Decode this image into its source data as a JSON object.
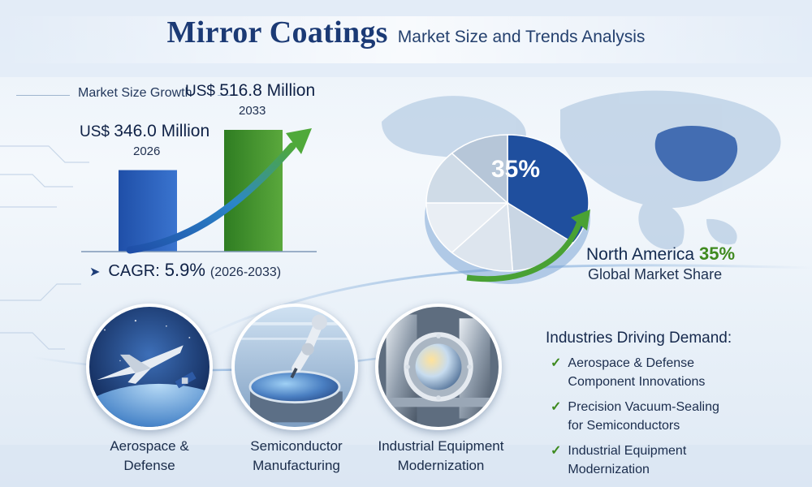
{
  "header": {
    "title": "Mirror Coatings",
    "subtitle": "Market Size and Trends Analysis"
  },
  "growth": {
    "section_label": "Market Size Growth",
    "cagr_label": "CAGR:",
    "cagr_value": "5.9%",
    "cagr_period": "(2026-2033)"
  },
  "chart_data": [
    {
      "type": "bar",
      "categories": [
        "2026",
        "2033"
      ],
      "values": [
        346.0,
        516.8
      ],
      "value_labels": [
        "US$ 346.0 Million",
        "US$ 516.8 Million"
      ],
      "value_prefix": "US$",
      "value_suffix": "Million",
      "colors": [
        "#2457b3",
        "#3f8f2a"
      ],
      "trend_arrow": true
    },
    {
      "type": "pie",
      "highlight_label": "35%",
      "slices": [
        {
          "label": "North America",
          "value": 35,
          "color": "#1f4f9e"
        },
        {
          "value": 14,
          "color": "#c9d6e4"
        },
        {
          "value": 13,
          "color": "#dde5ee"
        },
        {
          "value": 13,
          "color": "#e9eef4"
        },
        {
          "value": 13,
          "color": "#cfdbe7"
        },
        {
          "value": 12,
          "color": "#b6c6d8"
        }
      ]
    }
  ],
  "region": {
    "name": "North America",
    "share": "35%",
    "share_label": "Global Market Share"
  },
  "circles": [
    {
      "icon": "jet-satellite-icon",
      "caption_line1": "Aerospace &",
      "caption_line2": "Defense"
    },
    {
      "icon": "robot-arm-wafer-icon",
      "caption_line1": "Semiconductor",
      "caption_line2": "Manufacturing"
    },
    {
      "icon": "industrial-machinery-icon",
      "caption_line1": "Industrial Equipment",
      "caption_line2": "Modernization"
    }
  ],
  "industries": {
    "title": "Industries Driving Demand:",
    "items": [
      {
        "line1": "Aerospace & Defense",
        "line2": "Component Innovations"
      },
      {
        "line1": "Precision Vacuum-Sealing",
        "line2": "for Semiconductors"
      },
      {
        "line1": "Industrial Equipment",
        "line2": "Modernization"
      }
    ]
  },
  "colors": {
    "title": "#1b3a75",
    "bar_2026": "#2457b3",
    "bar_2033": "#3f8f2a",
    "accent_green": "#3f8a1f",
    "pie_highlight": "#1f4f9e"
  }
}
